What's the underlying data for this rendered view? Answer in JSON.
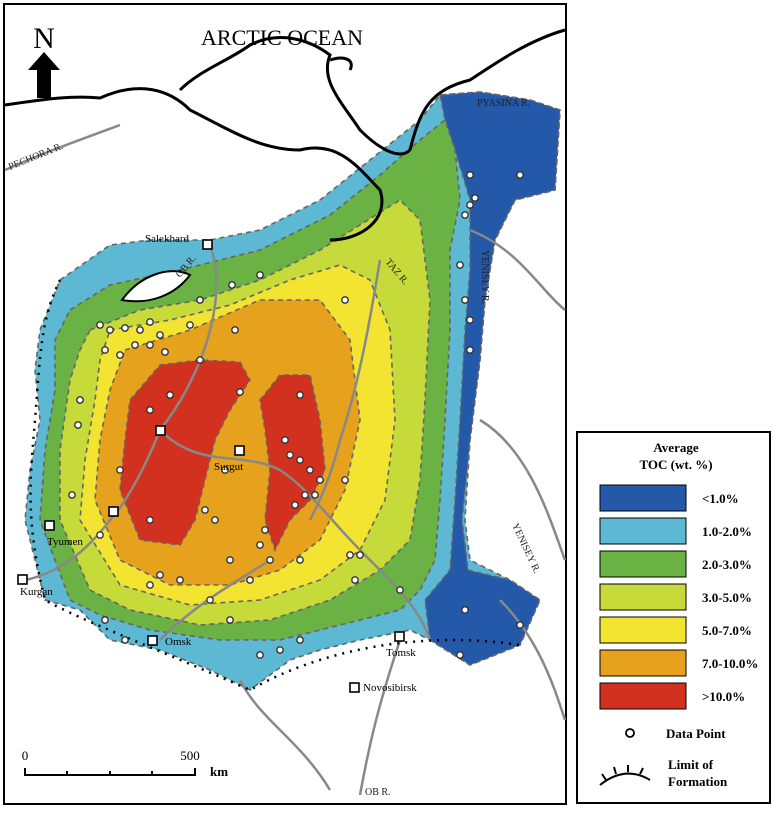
{
  "map": {
    "north": "N",
    "ocean_label": "ARCTIC OCEAN",
    "rivers": {
      "pechora": "PECHORA R.",
      "pyasina": "PYASINA R.",
      "ob_north": "OB R.",
      "taz": "TAZ R.",
      "yenisey_west": "YENISEY R.",
      "yenisey_east": "YENISEY R.",
      "ob_south": "OB R."
    },
    "cities": {
      "salekhard": "Salekhard",
      "surgut": "Surgut",
      "tyumen": "Tyumen",
      "kurgan": "Kurgan",
      "omsk": "Omsk",
      "tomsk": "Tomsk",
      "novosibirsk": "Novosibirsk"
    },
    "scale": {
      "start": 0,
      "end": 500,
      "unit": "km"
    },
    "legend": {
      "title": [
        "Average",
        "TOC (wt. %)"
      ],
      "items": [
        {
          "label": "<1.0%",
          "color": "#2458a9"
        },
        {
          "label": "1.0-2.0%",
          "color": "#5cb8d3"
        },
        {
          "label": "2.0-3.0%",
          "color": "#6ab244"
        },
        {
          "label": "3.0-5.0%",
          "color": "#c6da3a"
        },
        {
          "label": "5.0-7.0%",
          "color": "#f3e432"
        },
        {
          "label": "7.0-10.0%",
          "color": "#e6a11d"
        },
        {
          "label": ">10.0%",
          "color": "#d3311f"
        }
      ],
      "data_point": "Data Point",
      "limit": [
        "Limit of",
        "Formation"
      ]
    }
  }
}
